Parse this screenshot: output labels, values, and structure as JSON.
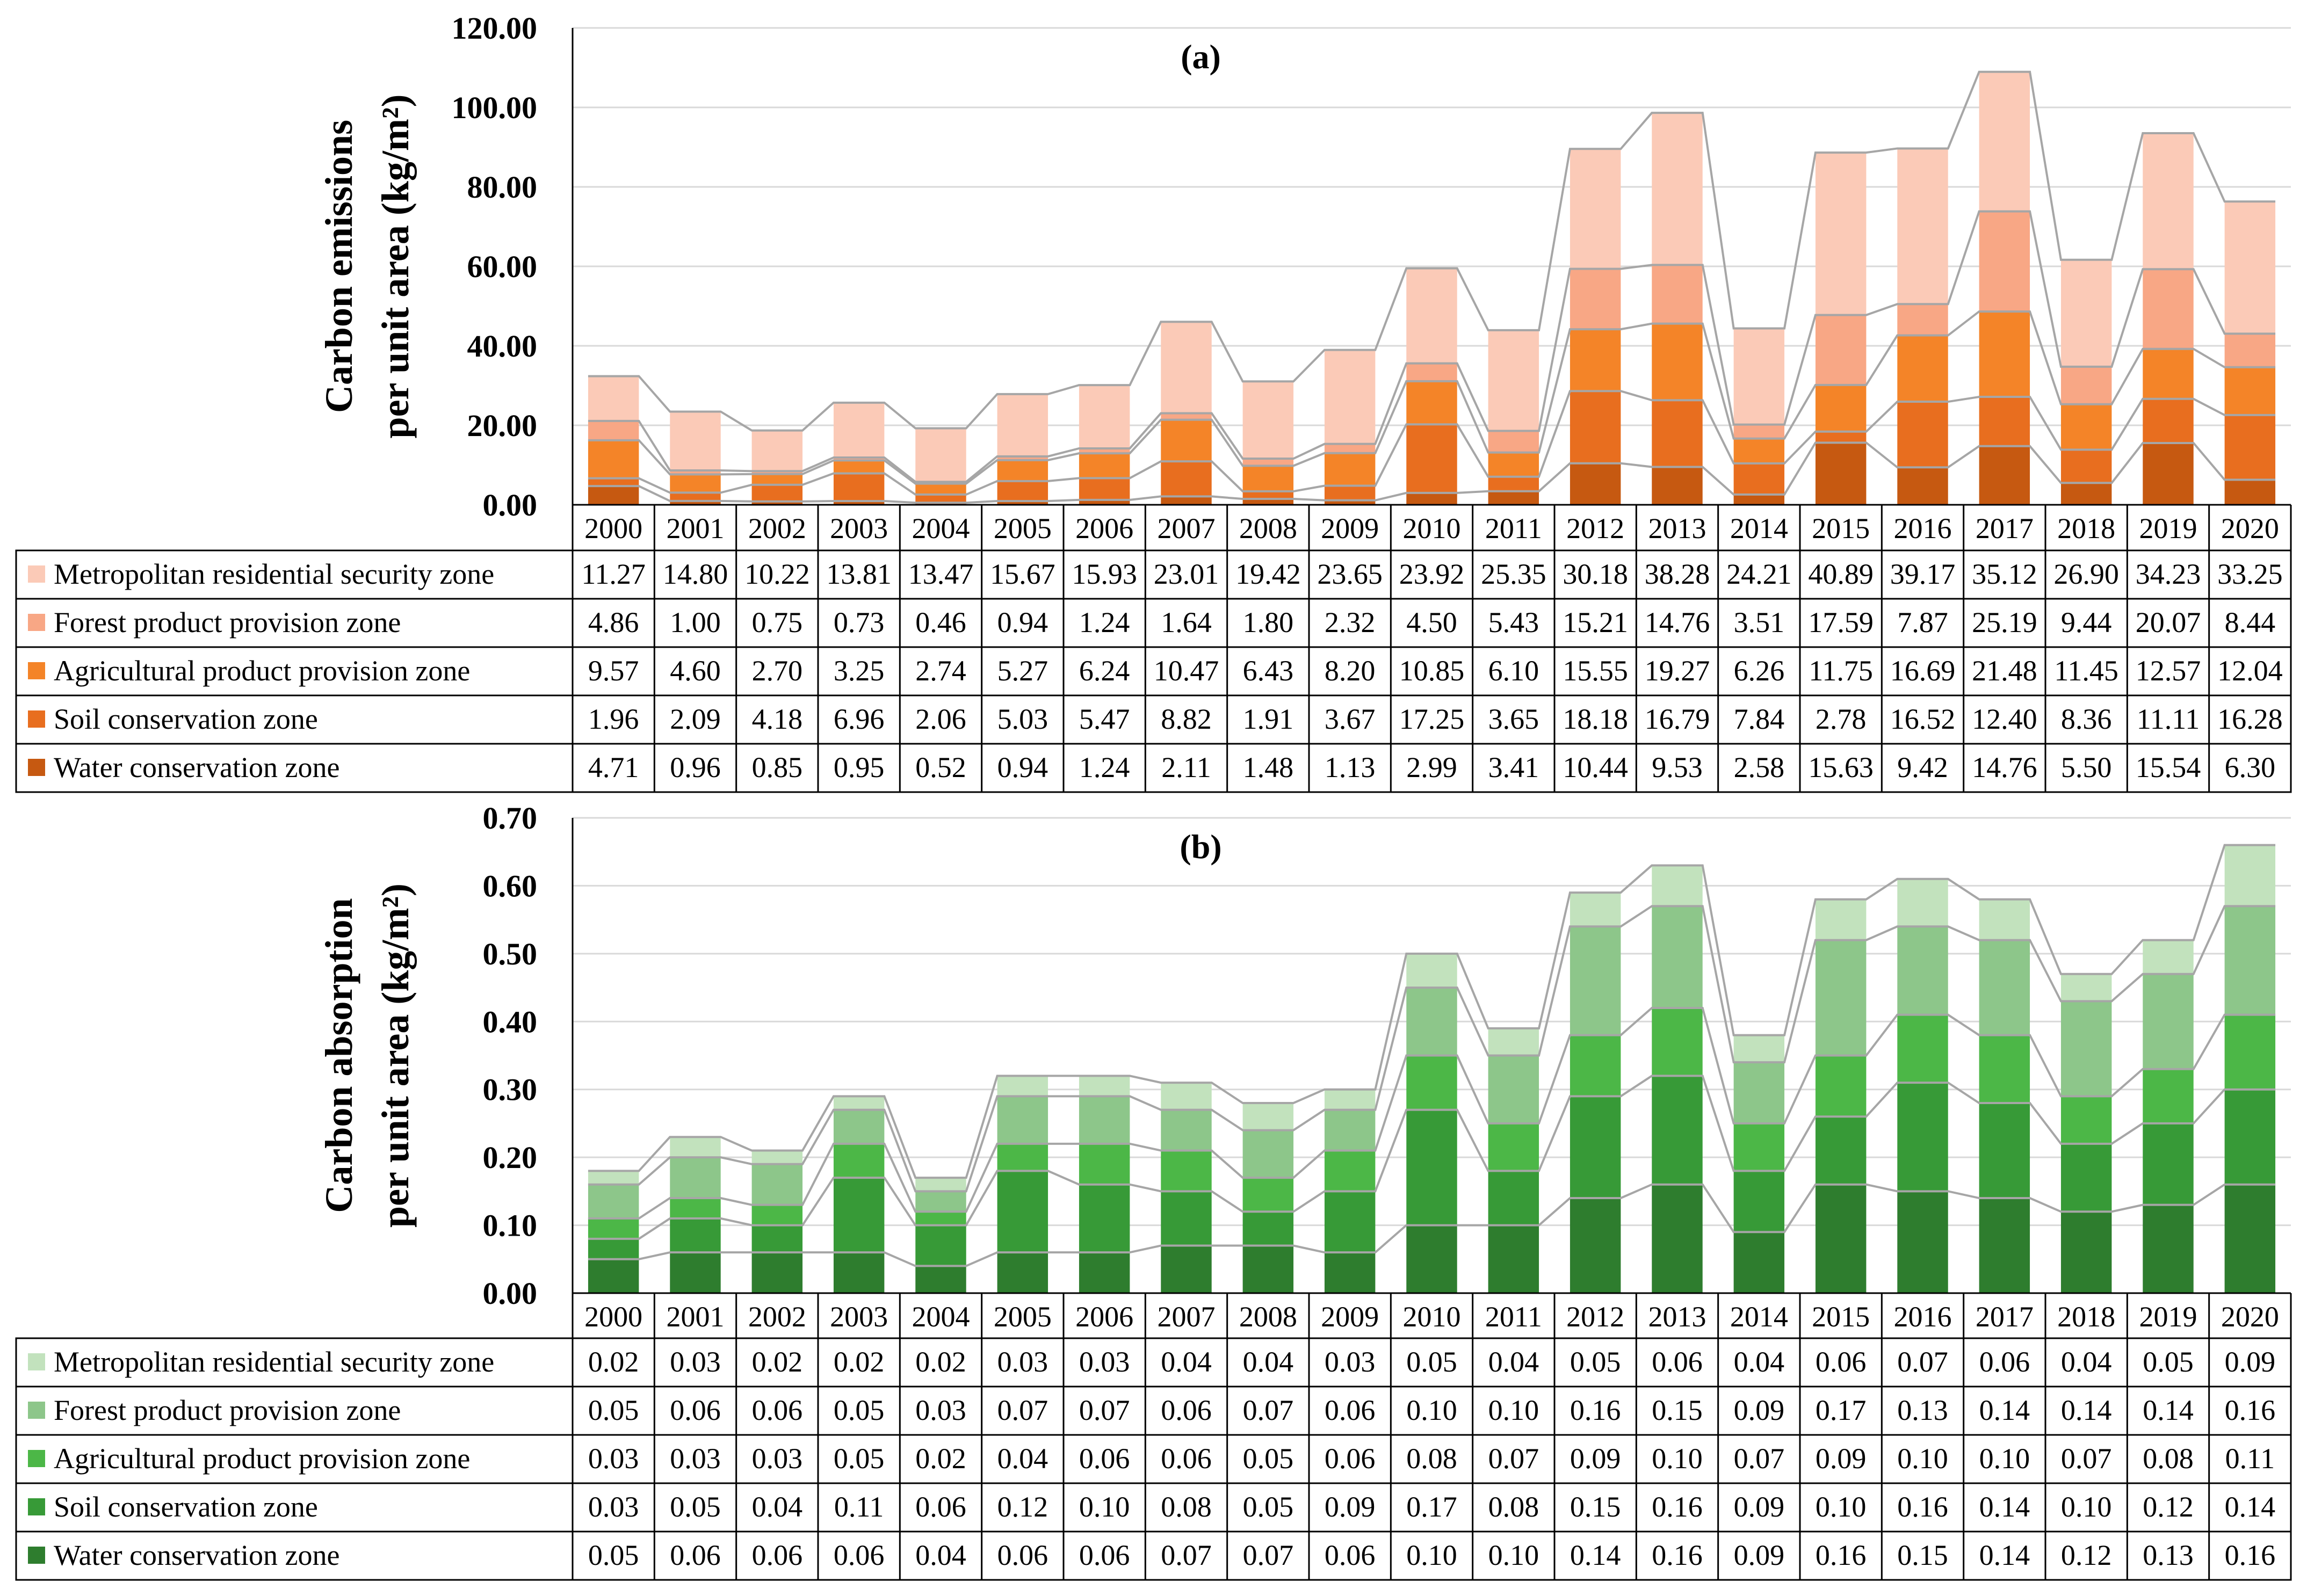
{
  "chart_data": [
    {
      "type": "bar",
      "stacked": true,
      "panel_label": "(a)",
      "title": "",
      "ylabel_lines": [
        "Carbon emissions",
        "per unit area (kg/m²)"
      ],
      "ylim": [
        0,
        120
      ],
      "ytick_labels": [
        "0.00",
        "20.00",
        "40.00",
        "60.00",
        "80.00",
        "100.00",
        "120.00"
      ],
      "grid": true,
      "categories": [
        "2000",
        "2001",
        "2002",
        "2003",
        "2004",
        "2005",
        "2006",
        "2007",
        "2008",
        "2009",
        "2010",
        "2011",
        "2012",
        "2013",
        "2014",
        "2015",
        "2016",
        "2017",
        "2018",
        "2019",
        "2020"
      ],
      "series": [
        {
          "name": "Water conservation zone",
          "color": "#c65911",
          "values": [
            4.71,
            0.96,
            0.85,
            0.95,
            0.52,
            0.94,
            1.24,
            2.11,
            1.48,
            1.13,
            2.99,
            3.41,
            10.44,
            9.53,
            2.58,
            15.63,
            9.42,
            14.76,
            5.5,
            15.54,
            6.3
          ],
          "labels": [
            "4.71",
            "0.96",
            "0.85",
            "0.95",
            "0.52",
            "0.94",
            "1.24",
            "2.11",
            "1.48",
            "1.13",
            "2.99",
            "3.41",
            "10.44",
            "9.53",
            "2.58",
            "15.63",
            "9.42",
            "14.76",
            "5.50",
            "15.54",
            "6.30"
          ]
        },
        {
          "name": "Soil conservation zone",
          "color": "#e86e1f",
          "values": [
            1.96,
            2.09,
            4.18,
            6.96,
            2.06,
            5.03,
            5.47,
            8.82,
            1.91,
            3.67,
            17.25,
            3.65,
            18.18,
            16.79,
            7.84,
            2.78,
            16.52,
            12.4,
            8.36,
            11.11,
            16.28
          ],
          "labels": [
            "1.96",
            "2.09",
            "4.18",
            "6.96",
            "2.06",
            "5.03",
            "5.47",
            "8.82",
            "1.91",
            "3.67",
            "17.25",
            "3.65",
            "18.18",
            "16.79",
            "7.84",
            "2.78",
            "16.52",
            "12.40",
            "8.36",
            "11.11",
            "16.28"
          ]
        },
        {
          "name": "Agricultural product provision zone",
          "color": "#f48428",
          "values": [
            9.57,
            4.6,
            2.7,
            3.25,
            2.74,
            5.27,
            6.24,
            10.47,
            6.43,
            8.2,
            10.85,
            6.1,
            15.55,
            19.27,
            6.26,
            11.75,
            16.69,
            21.48,
            11.45,
            12.57,
            12.04
          ],
          "labels": [
            "9.57",
            "4.60",
            "2.70",
            "3.25",
            "2.74",
            "5.27",
            "6.24",
            "10.47",
            "6.43",
            "8.20",
            "10.85",
            "6.10",
            "15.55",
            "19.27",
            "6.26",
            "11.75",
            "16.69",
            "21.48",
            "11.45",
            "12.57",
            "12.04"
          ]
        },
        {
          "name": "Forest product provision zone",
          "color": "#f8a785",
          "values": [
            4.86,
            1.0,
            0.75,
            0.73,
            0.46,
            0.94,
            1.24,
            1.64,
            1.8,
            2.32,
            4.5,
            5.43,
            15.21,
            14.76,
            3.51,
            17.59,
            7.87,
            25.19,
            9.44,
            20.07,
            8.44
          ],
          "labels": [
            "4.86",
            "1.00",
            "0.75",
            "0.73",
            "0.46",
            "0.94",
            "1.24",
            "1.64",
            "1.80",
            "2.32",
            "4.50",
            "5.43",
            "15.21",
            "14.76",
            "3.51",
            "17.59",
            "7.87",
            "25.19",
            "9.44",
            "20.07",
            "8.44"
          ]
        },
        {
          "name": "Metropolitan residential security zone",
          "color": "#fbcab7",
          "values": [
            11.27,
            14.8,
            10.22,
            13.81,
            13.47,
            15.67,
            15.93,
            23.01,
            19.42,
            23.65,
            23.92,
            25.35,
            30.18,
            38.28,
            24.21,
            40.89,
            39.17,
            35.12,
            26.9,
            34.23,
            33.25
          ],
          "labels": [
            "11.27",
            "14.80",
            "10.22",
            "13.81",
            "13.47",
            "15.67",
            "15.93",
            "23.01",
            "19.42",
            "23.65",
            "23.92",
            "25.35",
            "30.18",
            "38.28",
            "24.21",
            "40.89",
            "39.17",
            "35.12",
            "26.90",
            "34.23",
            "33.25"
          ]
        }
      ]
    },
    {
      "type": "bar",
      "stacked": true,
      "panel_label": "(b)",
      "title": "",
      "ylabel_lines": [
        "Carbon absorption",
        "per unit area (kg/m²)"
      ],
      "ylim": [
        0,
        0.7
      ],
      "ytick_labels": [
        "0.00",
        "0.10",
        "0.20",
        "0.30",
        "0.40",
        "0.50",
        "0.60",
        "0.70"
      ],
      "grid": true,
      "categories": [
        "2000",
        "2001",
        "2002",
        "2003",
        "2004",
        "2005",
        "2006",
        "2007",
        "2008",
        "2009",
        "2010",
        "2011",
        "2012",
        "2013",
        "2014",
        "2015",
        "2016",
        "2017",
        "2018",
        "2019",
        "2020"
      ],
      "series": [
        {
          "name": "Water conservation zone",
          "color": "#2e7d2e",
          "values": [
            0.05,
            0.06,
            0.06,
            0.06,
            0.04,
            0.06,
            0.06,
            0.07,
            0.07,
            0.06,
            0.1,
            0.1,
            0.14,
            0.16,
            0.09,
            0.16,
            0.15,
            0.14,
            0.12,
            0.13,
            0.16
          ],
          "labels": [
            "0.05",
            "0.06",
            "0.06",
            "0.06",
            "0.04",
            "0.06",
            "0.06",
            "0.07",
            "0.07",
            "0.06",
            "0.10",
            "0.10",
            "0.14",
            "0.16",
            "0.09",
            "0.16",
            "0.15",
            "0.14",
            "0.12",
            "0.13",
            "0.16"
          ]
        },
        {
          "name": "Soil conservation zone",
          "color": "#379a37",
          "values": [
            0.03,
            0.05,
            0.04,
            0.11,
            0.06,
            0.12,
            0.1,
            0.08,
            0.05,
            0.09,
            0.17,
            0.08,
            0.15,
            0.16,
            0.09,
            0.1,
            0.16,
            0.14,
            0.1,
            0.12,
            0.14
          ],
          "labels": [
            "0.03",
            "0.05",
            "0.04",
            "0.11",
            "0.06",
            "0.12",
            "0.10",
            "0.08",
            "0.05",
            "0.09",
            "0.17",
            "0.08",
            "0.15",
            "0.16",
            "0.09",
            "0.10",
            "0.16",
            "0.14",
            "0.10",
            "0.12",
            "0.14"
          ]
        },
        {
          "name": "Agricultural product provision zone",
          "color": "#4cb747",
          "values": [
            0.03,
            0.03,
            0.03,
            0.05,
            0.02,
            0.04,
            0.06,
            0.06,
            0.05,
            0.06,
            0.08,
            0.07,
            0.09,
            0.1,
            0.07,
            0.09,
            0.1,
            0.1,
            0.07,
            0.08,
            0.11
          ],
          "labels": [
            "0.03",
            "0.03",
            "0.03",
            "0.05",
            "0.02",
            "0.04",
            "0.06",
            "0.06",
            "0.05",
            "0.06",
            "0.08",
            "0.07",
            "0.09",
            "0.10",
            "0.07",
            "0.09",
            "0.10",
            "0.10",
            "0.07",
            "0.08",
            "0.11"
          ]
        },
        {
          "name": "Forest product provision zone",
          "color": "#8dc68a",
          "values": [
            0.05,
            0.06,
            0.06,
            0.05,
            0.03,
            0.07,
            0.07,
            0.06,
            0.07,
            0.06,
            0.1,
            0.1,
            0.16,
            0.15,
            0.09,
            0.17,
            0.13,
            0.14,
            0.14,
            0.14,
            0.16
          ],
          "labels": [
            "0.05",
            "0.06",
            "0.06",
            "0.05",
            "0.03",
            "0.07",
            "0.07",
            "0.06",
            "0.07",
            "0.06",
            "0.10",
            "0.10",
            "0.16",
            "0.15",
            "0.09",
            "0.17",
            "0.13",
            "0.14",
            "0.14",
            "0.14",
            "0.16"
          ]
        },
        {
          "name": "Metropolitan residential security zone",
          "color": "#c2e2bd",
          "values": [
            0.02,
            0.03,
            0.02,
            0.02,
            0.02,
            0.03,
            0.03,
            0.04,
            0.04,
            0.03,
            0.05,
            0.04,
            0.05,
            0.06,
            0.04,
            0.06,
            0.07,
            0.06,
            0.04,
            0.05,
            0.09
          ],
          "labels": [
            "0.02",
            "0.03",
            "0.02",
            "0.02",
            "0.02",
            "0.03",
            "0.03",
            "0.04",
            "0.04",
            "0.03",
            "0.05",
            "0.04",
            "0.05",
            "0.06",
            "0.04",
            "0.06",
            "0.07",
            "0.06",
            "0.04",
            "0.05",
            "0.09"
          ]
        }
      ]
    }
  ]
}
